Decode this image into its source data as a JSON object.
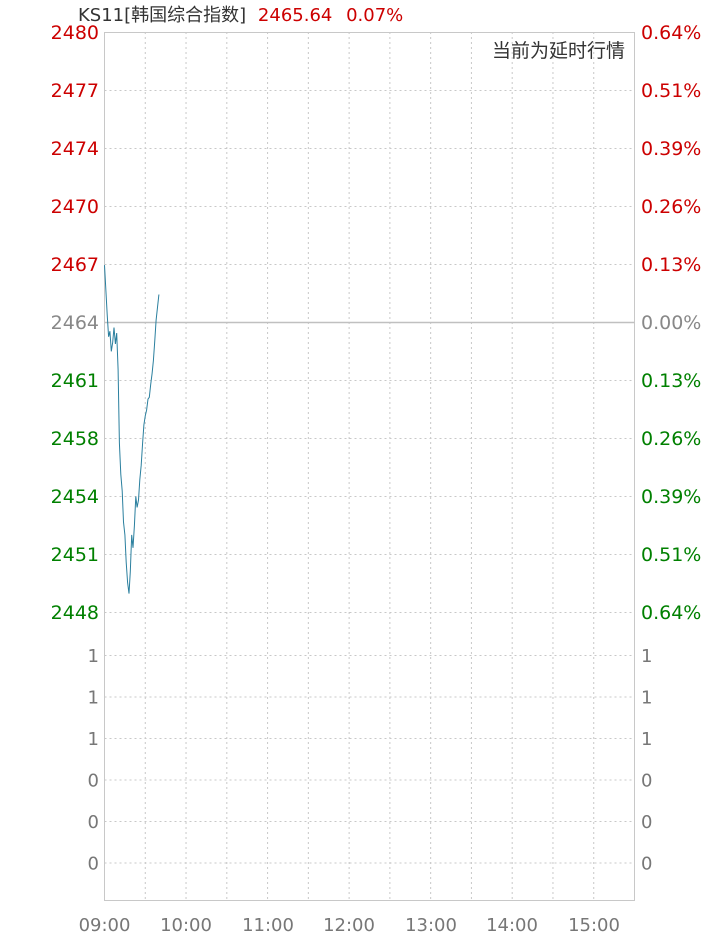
{
  "header": {
    "code": "KS11",
    "name": "[韩国综合指数]",
    "price": "2465.64",
    "change_pct": "0.07%"
  },
  "delay_note": "当前为延时行情",
  "colors": {
    "up": "#cc0000",
    "down": "#008000",
    "neutral": "#888888",
    "line": "#2a7f9e",
    "grid": "#c8c8c8",
    "baseline": "#c0c0c0"
  },
  "chart_data": {
    "type": "line",
    "title": "KS11[韩国综合指数]",
    "xlabel": "",
    "ylabel": "",
    "x_ticks": [
      "09:00",
      "10:00",
      "11:00",
      "12:00",
      "13:00",
      "14:00",
      "15:00"
    ],
    "price_axis": {
      "labels": [
        "2480",
        "2477",
        "2474",
        "2470",
        "2467",
        "2464",
        "2461",
        "2458",
        "2454",
        "2451",
        "2448"
      ],
      "pct_labels": [
        "0.64%",
        "0.51%",
        "0.39%",
        "0.26%",
        "0.13%",
        "0.00%",
        "0.13%",
        "0.26%",
        "0.39%",
        "0.51%",
        "0.64%"
      ],
      "range": [
        2448.3,
        2479.9
      ],
      "baseline": 2464.1
    },
    "volume_axis": {
      "labels": [
        "1",
        "1",
        "1",
        "0",
        "0",
        "0"
      ]
    },
    "series": [
      {
        "x": [
          "09:00",
          "09:01",
          "09:02",
          "09:03",
          "09:04",
          "09:05",
          "09:06",
          "09:07",
          "09:08",
          "09:09",
          "09:10",
          "09:11",
          "09:12",
          "09:13",
          "09:14",
          "09:15",
          "09:16",
          "09:17",
          "09:18",
          "09:19",
          "09:20",
          "09:21",
          "09:22",
          "09:23",
          "09:24",
          "09:25",
          "09:26",
          "09:27",
          "09:28",
          "09:29",
          "09:30",
          "09:31",
          "09:32",
          "09:33",
          "09:34",
          "09:35",
          "09:36",
          "09:37",
          "09:38",
          "09:39",
          "09:40"
        ],
        "values": [
          2467.2,
          2465.8,
          2464.5,
          2463.3,
          2463.6,
          2462.5,
          2463.0,
          2463.8,
          2462.9,
          2463.5,
          2461.5,
          2457.5,
          2455.8,
          2454.9,
          2453.2,
          2452.5,
          2451.0,
          2449.9,
          2449.3,
          2450.5,
          2452.5,
          2451.8,
          2453.0,
          2454.6,
          2454.0,
          2454.4,
          2455.5,
          2456.3,
          2457.5,
          2458.5,
          2459.0,
          2459.3,
          2459.9,
          2460.0,
          2460.7,
          2461.3,
          2462.0,
          2463.1,
          2464.2,
          2464.9,
          2465.6
        ]
      }
    ],
    "grid": true
  }
}
